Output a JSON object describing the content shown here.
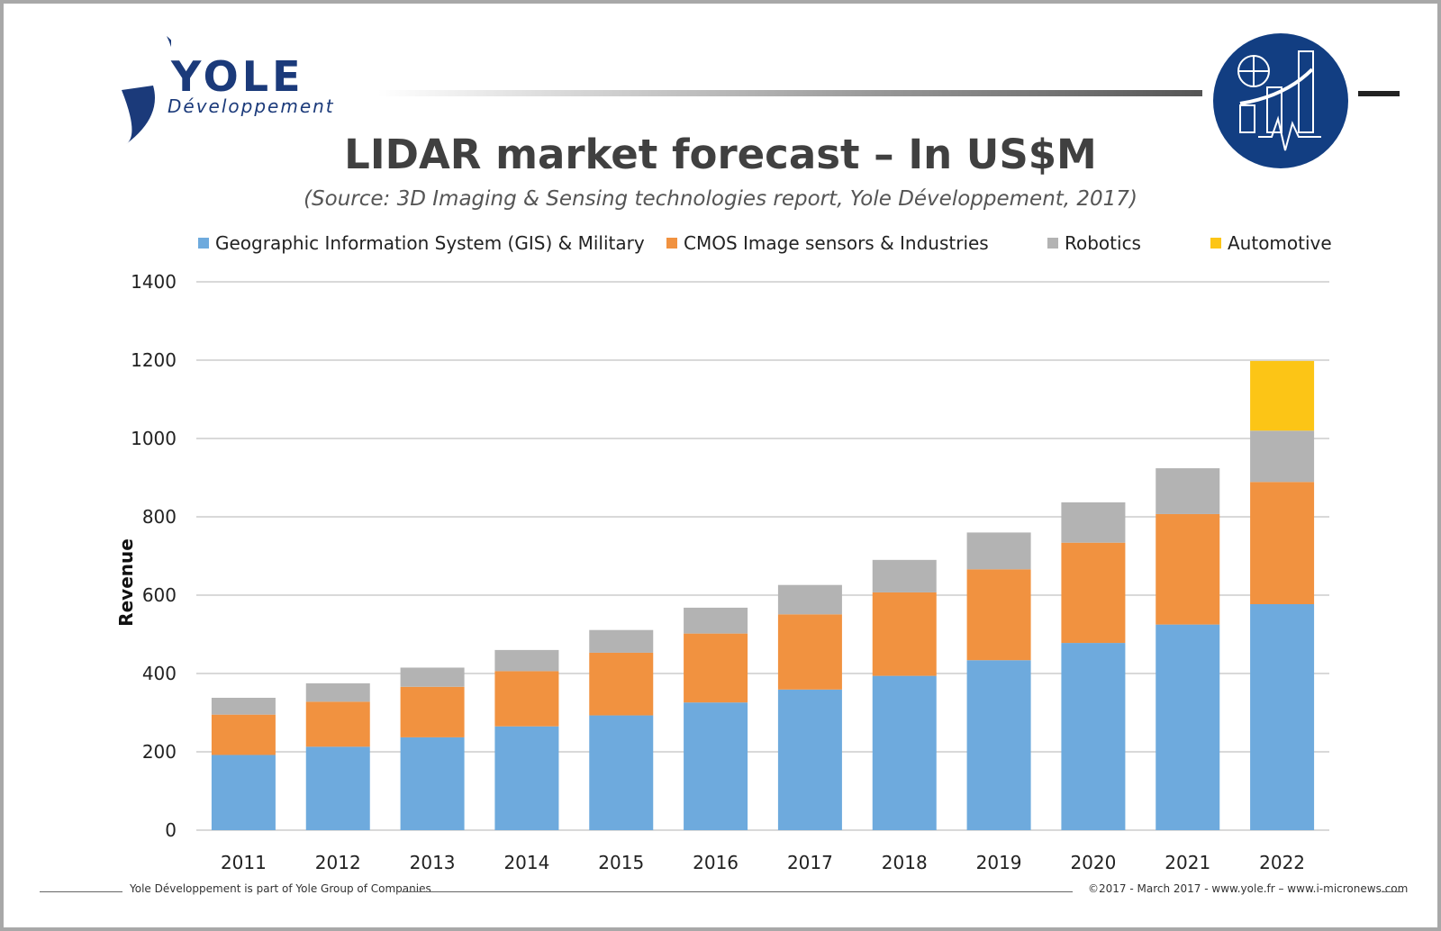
{
  "header": {
    "logo_text": "YOLE",
    "logo_subtext": "Développement"
  },
  "chart_data": {
    "type": "bar",
    "stacked": true,
    "title": "LIDAR market forecast – In US$M",
    "subtitle": "(Source: 3D Imaging & Sensing technologies report, Yole Développement, 2017)",
    "ylabel": "Revenue",
    "xlabel": "",
    "ylim": [
      0,
      1400
    ],
    "yticks": [
      0,
      200,
      400,
      600,
      800,
      1000,
      1200,
      1400
    ],
    "grid": true,
    "legend_position": "top",
    "categories": [
      "2011",
      "2012",
      "2013",
      "2014",
      "2015",
      "2016",
      "2017",
      "2018",
      "2019",
      "2020",
      "2021",
      "2022"
    ],
    "series": [
      {
        "name": "Geographic Information System (GIS) & Military",
        "color": "#6eaadd",
        "values": [
          192,
          213,
          237,
          265,
          293,
          326,
          359,
          394,
          434,
          478,
          525,
          577
        ]
      },
      {
        "name": "CMOS Image sensors & Industries",
        "color": "#f19240",
        "values": [
          103,
          115,
          129,
          141,
          160,
          176,
          192,
          213,
          232,
          256,
          282,
          312
        ]
      },
      {
        "name": "Robotics",
        "color": "#b3b3b3",
        "values": [
          43,
          47,
          49,
          54,
          58,
          66,
          75,
          83,
          94,
          103,
          117,
          131
        ]
      },
      {
        "name": "Automotive",
        "color": "#fcc516",
        "values": [
          0,
          0,
          0,
          0,
          0,
          0,
          0,
          0,
          0,
          0,
          0,
          178
        ]
      }
    ]
  },
  "footer": {
    "left": "Yole Développement is part of Yole Group of Companies",
    "right": "©2017 - March 2017 - www.yole.fr – www.i-micronews.com"
  }
}
